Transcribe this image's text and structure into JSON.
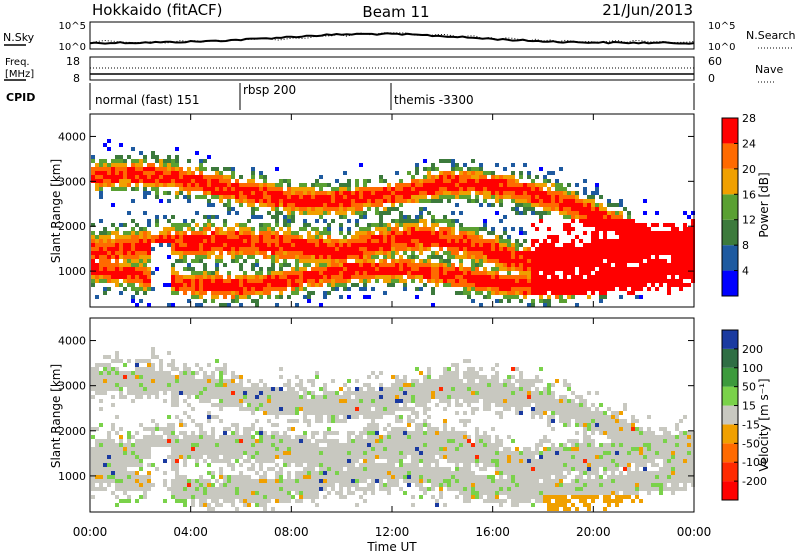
{
  "header": {
    "station": "Hokkaido (fitACF)",
    "beam": "Beam 11",
    "date": "21/Jun/2013"
  },
  "left_labels": {
    "nsky": "N.Sky",
    "freq_line1": "Freq.",
    "freq_line2": "[MHz]",
    "cpid": "CPID"
  },
  "right_labels": {
    "nsearch": "N.Search",
    "nave": "Nave"
  },
  "strips": {
    "nsky_ticks": [
      "10^5",
      "10^0"
    ],
    "nsearch_ticks": [
      "10^5",
      "10^0"
    ],
    "freq_ticks": [
      "18",
      "8"
    ],
    "nave_ticks": [
      "60",
      "0"
    ]
  },
  "cpid_segments": [
    {
      "label": "normal (fast) 151",
      "start_hour": 0
    },
    {
      "label": "rbsp 200",
      "start_hour": 6
    },
    {
      "label": "themis -3300",
      "start_hour": 12
    }
  ],
  "chart_data": [
    {
      "type": "heatmap",
      "name": "power",
      "xlabel": "",
      "ylabel": "Slant Range [km]",
      "ylim": [
        200,
        4500
      ],
      "yticks": [
        "1000",
        "2000",
        "3000",
        "4000"
      ],
      "colorbar_label": "Power [dB]",
      "colorbar_ticks": [
        "4",
        "8",
        "12",
        "16",
        "20",
        "24",
        "28"
      ],
      "colors": [
        "#0000ff",
        "#1e5aa0",
        "#3c7a3c",
        "#5aa032",
        "#f0a000",
        "#ff6a00",
        "#ff0000"
      ]
    },
    {
      "type": "heatmap",
      "name": "velocity",
      "xlabel": "Time UT",
      "ylabel": "Slant Range [km]",
      "ylim": [
        200,
        4500
      ],
      "yticks": [
        "1000",
        "2000",
        "3000",
        "4000"
      ],
      "xticks": [
        "00:00",
        "04:00",
        "08:00",
        "12:00",
        "16:00",
        "20:00",
        "00:00"
      ],
      "colorbar_label": "Velocity [m s⁻¹]",
      "colorbar_ticks": [
        "200",
        "100",
        "50",
        "15",
        "-15",
        "-50",
        "-100",
        "-200"
      ],
      "colors": [
        "#1a3aa0",
        "#2f6e44",
        "#3c9a3c",
        "#7ad24a",
        "#c8c8c0",
        "#f0a000",
        "#ff6a00",
        "#ff2a00",
        "#ff0000"
      ]
    }
  ]
}
